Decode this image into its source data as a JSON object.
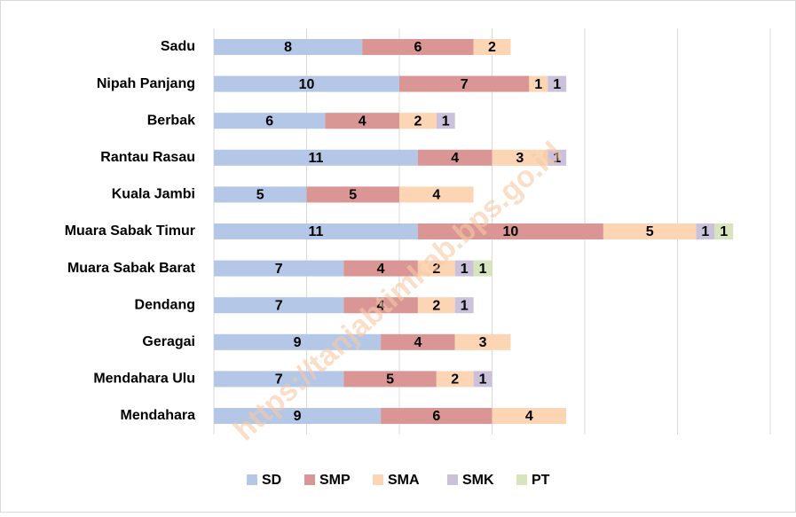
{
  "chart_data": {
    "type": "stacked-bar-horizontal",
    "categories": [
      "Sadu",
      "Nipah Panjang",
      "Berbak",
      "Rantau Rasau",
      "Kuala Jambi",
      "Muara Sabak Timur",
      "Muara Sabak Barat",
      "Dendang",
      "Geragai",
      "Mendahara Ulu",
      "Mendahara"
    ],
    "series": [
      {
        "name": "SD",
        "color": "#b4c7e7",
        "values": [
          8,
          10,
          6,
          11,
          5,
          11,
          7,
          7,
          9,
          7,
          9
        ]
      },
      {
        "name": "SMP",
        "color": "#d99694",
        "values": [
          6,
          7,
          4,
          4,
          5,
          10,
          4,
          4,
          4,
          5,
          6
        ]
      },
      {
        "name": "SMA",
        "color": "#fcd5b5",
        "values": [
          2,
          1,
          2,
          3,
          4,
          5,
          2,
          2,
          3,
          2,
          4
        ]
      },
      {
        "name": "SMK",
        "color": "#ccc1da",
        "values": [
          null,
          1,
          1,
          1,
          null,
          1,
          1,
          1,
          null,
          1,
          null
        ]
      },
      {
        "name": "PT",
        "color": "#d7e4bd",
        "values": [
          null,
          null,
          null,
          null,
          null,
          1,
          1,
          null,
          null,
          null,
          null
        ]
      }
    ],
    "xlim": [
      0,
      30
    ],
    "xticks": [
      0,
      5,
      10,
      15,
      20,
      25,
      30
    ],
    "grid": true,
    "legend": "bottom",
    "watermark": "https://tanjabtimkab.bps.go.id"
  }
}
